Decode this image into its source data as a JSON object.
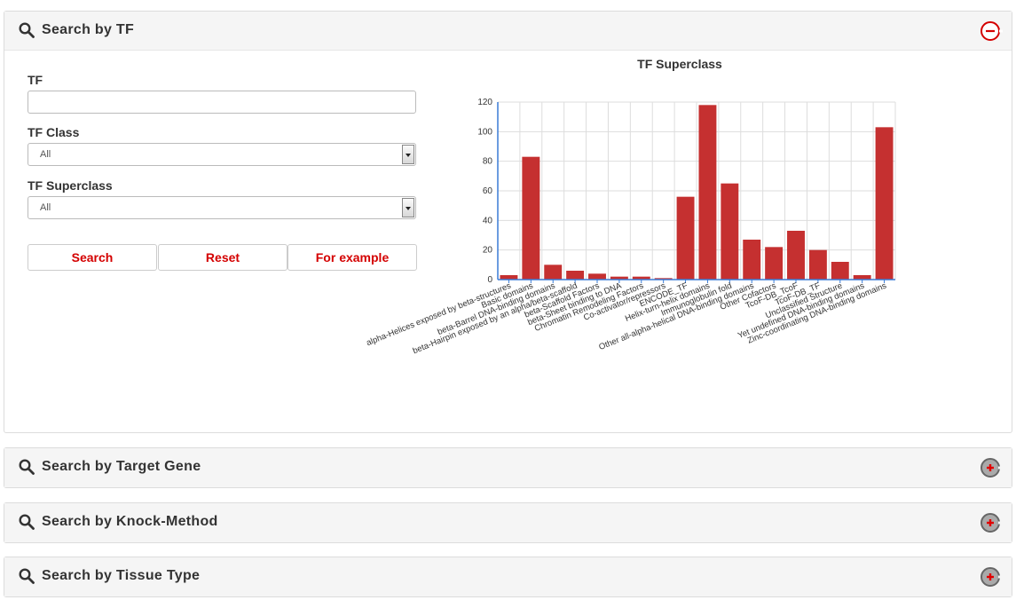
{
  "panels": [
    {
      "title": "Search by TF"
    },
    {
      "title": "Search by Target Gene"
    },
    {
      "title": "Search by Knock-Method"
    },
    {
      "title": "Search by Tissue Type"
    }
  ],
  "form": {
    "tf_label": "TF",
    "tf_value": "",
    "class_label": "TF Class",
    "class_value": "All",
    "superclass_label": "TF Superclass",
    "superclass_value": "All"
  },
  "buttons": {
    "search": "Search",
    "reset": "Reset",
    "example": "For example"
  },
  "colors": {
    "accent": "#d40000",
    "bar": "#c53030"
  },
  "icons": {
    "search": "magnifier-icon",
    "collapse": "minus-circle-icon",
    "expand": "plus-circle-icon"
  },
  "chart_data": {
    "type": "bar",
    "title": "TF Superclass",
    "xlabel": "",
    "ylabel": "",
    "ylim": [
      0,
      120
    ],
    "yticks": [
      0,
      20,
      40,
      60,
      80,
      100,
      120
    ],
    "grid": true,
    "categories": [
      "alpha-Helices exposed by beta-structures",
      "Basic domains",
      "beta-Barrel DNA-binding domains",
      "beta-Hairpin exposed by an alpha/beta-scaffold",
      "beta-Scaffold Factors",
      "beta-Sheet binding to DNA",
      "Chromatin Remodeling Factors",
      "Co-activator/repressors",
      "ENCODE_TF",
      "Helix-turn-helix domains",
      "Immunoglobulin fold",
      "Other all-alpha-helical DNA-binding domains",
      "Other Cofactors",
      "TcoF-DB_TcoF",
      "TcoF-DB_TF",
      "Unclassified Structure",
      "Yet undefined DNA-binding domains",
      "Zinc-coordinating DNA-binding domains"
    ],
    "values": [
      3,
      83,
      10,
      6,
      4,
      2,
      2,
      1,
      56,
      118,
      65,
      27,
      22,
      33,
      20,
      12,
      3,
      103
    ]
  }
}
